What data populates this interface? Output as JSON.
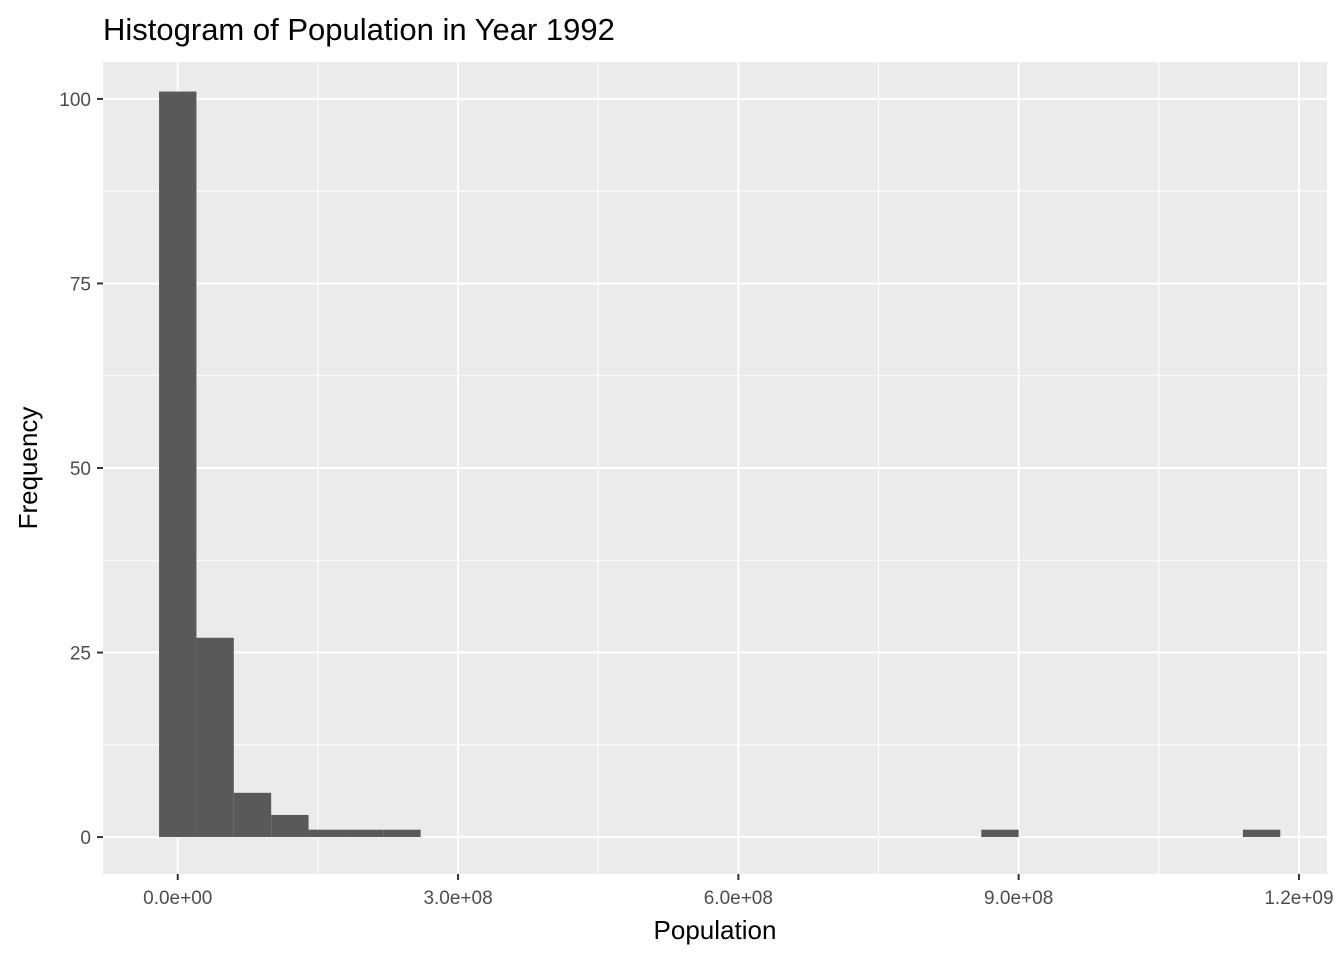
{
  "chart_data": {
    "type": "bar",
    "title": "Histogram of Population in Year 1992",
    "xlabel": "Population",
    "ylabel": "Frequency",
    "xlim": [
      -80000000,
      1230000000
    ],
    "ylim": [
      -5,
      105
    ],
    "x_ticks": [
      {
        "value": 0,
        "label": "0.0e+00"
      },
      {
        "value": 300000000,
        "label": "3.0e+08"
      },
      {
        "value": 600000000,
        "label": "6.0e+08"
      },
      {
        "value": 900000000,
        "label": "9.0e+08"
      },
      {
        "value": 1200000000,
        "label": "1.2e+09"
      }
    ],
    "y_ticks": [
      {
        "value": 0,
        "label": "0"
      },
      {
        "value": 25,
        "label": "25"
      },
      {
        "value": 50,
        "label": "50"
      },
      {
        "value": 75,
        "label": "75"
      },
      {
        "value": 100,
        "label": "100"
      }
    ],
    "x_minor_ticks": [
      150000000,
      450000000,
      750000000,
      1050000000
    ],
    "y_minor_ticks": [
      12.5,
      37.5,
      62.5,
      87.5
    ],
    "grid": true,
    "bin_width": 40000000,
    "bins": [
      {
        "x0": -20000000,
        "x1": 20000000,
        "count": 101
      },
      {
        "x0": 20000000,
        "x1": 60000000,
        "count": 27
      },
      {
        "x0": 60000000,
        "x1": 100000000,
        "count": 6
      },
      {
        "x0": 100000000,
        "x1": 140000000,
        "count": 3
      },
      {
        "x0": 140000000,
        "x1": 180000000,
        "count": 1
      },
      {
        "x0": 180000000,
        "x1": 220000000,
        "count": 1
      },
      {
        "x0": 220000000,
        "x1": 260000000,
        "count": 1
      },
      {
        "x0": 260000000,
        "x1": 300000000,
        "count": 0
      },
      {
        "x0": 300000000,
        "x1": 340000000,
        "count": 0
      },
      {
        "x0": 340000000,
        "x1": 380000000,
        "count": 0
      },
      {
        "x0": 380000000,
        "x1": 420000000,
        "count": 0
      },
      {
        "x0": 420000000,
        "x1": 460000000,
        "count": 0
      },
      {
        "x0": 460000000,
        "x1": 500000000,
        "count": 0
      },
      {
        "x0": 500000000,
        "x1": 540000000,
        "count": 0
      },
      {
        "x0": 540000000,
        "x1": 580000000,
        "count": 0
      },
      {
        "x0": 580000000,
        "x1": 620000000,
        "count": 0
      },
      {
        "x0": 620000000,
        "x1": 660000000,
        "count": 0
      },
      {
        "x0": 660000000,
        "x1": 700000000,
        "count": 0
      },
      {
        "x0": 700000000,
        "x1": 740000000,
        "count": 0
      },
      {
        "x0": 740000000,
        "x1": 780000000,
        "count": 0
      },
      {
        "x0": 780000000,
        "x1": 820000000,
        "count": 0
      },
      {
        "x0": 820000000,
        "x1": 860000000,
        "count": 0
      },
      {
        "x0": 860000000,
        "x1": 900000000,
        "count": 1
      },
      {
        "x0": 900000000,
        "x1": 940000000,
        "count": 0
      },
      {
        "x0": 940000000,
        "x1": 980000000,
        "count": 0
      },
      {
        "x0": 980000000,
        "x1": 1020000000,
        "count": 0
      },
      {
        "x0": 1020000000,
        "x1": 1060000000,
        "count": 0
      },
      {
        "x0": 1060000000,
        "x1": 1100000000,
        "count": 0
      },
      {
        "x0": 1100000000,
        "x1": 1140000000,
        "count": 0
      },
      {
        "x0": 1140000000,
        "x1": 1180000000,
        "count": 1
      }
    ],
    "colors": {
      "panel": "#ebebeb",
      "grid": "#ffffff",
      "bar": "#595959",
      "tick": "#333333"
    }
  }
}
